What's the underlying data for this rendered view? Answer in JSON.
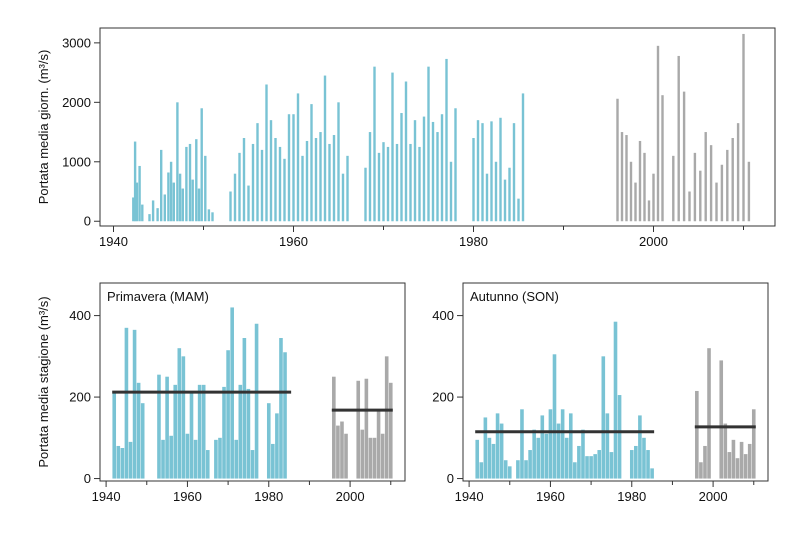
{
  "colors": {
    "early": "#79c3d4",
    "late": "#a9a9a9",
    "mean_line": "#333333"
  },
  "chart_data": [
    {
      "type": "bar",
      "ylabel": "Portata media giorn. (m³/s)",
      "xlim": [
        1938.5,
        2013.5
      ],
      "ylim": [
        -80,
        3250
      ],
      "xticks": [
        1940,
        1960,
        1980,
        2000
      ],
      "yticks": [
        0,
        1000,
        2000,
        3000
      ],
      "series": [
        {
          "color_key": "early",
          "x": [
            1942.2,
            1942.4,
            1942.6,
            1942.9,
            1943.2,
            1944,
            1944.4,
            1944.9,
            1945.3,
            1945.7,
            1946.1,
            1946.4,
            1946.7,
            1947.1,
            1947.4,
            1947.7,
            1948.1,
            1948.5,
            1948.8,
            1949.2,
            1949.5,
            1949.8,
            1950.2,
            1950.6,
            1951
          ],
          "values": [
            400,
            1340,
            650,
            930,
            280,
            120,
            350,
            220,
            1200,
            450,
            820,
            1000,
            650,
            2000,
            800,
            550,
            1250,
            1300,
            700,
            1380,
            550,
            1900,
            1100,
            200,
            150
          ]
        },
        {
          "color_key": "early",
          "x": [
            1953,
            1953.5,
            1954,
            1954.5,
            1955,
            1955.5,
            1956,
            1956.5,
            1957,
            1957.5,
            1958,
            1958.5,
            1959,
            1959.5,
            1960,
            1960.5,
            1961,
            1961.5,
            1962,
            1962.5,
            1963,
            1963.5,
            1964,
            1964.5,
            1965,
            1965.5,
            1966
          ],
          "values": [
            500,
            800,
            1150,
            1400,
            600,
            1300,
            1650,
            1200,
            2300,
            1700,
            1400,
            1250,
            1050,
            1800,
            1800,
            2150,
            1100,
            1350,
            1970,
            1400,
            1500,
            2450,
            1300,
            1450,
            2000,
            800,
            1100
          ]
        },
        {
          "color_key": "early",
          "x": [
            1968,
            1968.5,
            1969,
            1969.5,
            1970,
            1970.5,
            1971,
            1971.5,
            1972,
            1972.5,
            1973,
            1973.5,
            1974,
            1974.5,
            1975,
            1975.5,
            1976,
            1976.5,
            1977,
            1977.5,
            1978
          ],
          "values": [
            900,
            1500,
            2600,
            1150,
            1330,
            1250,
            2500,
            1300,
            1820,
            2350,
            1300,
            1700,
            1250,
            1760,
            2600,
            1670,
            1500,
            1800,
            2730,
            1000,
            1900
          ]
        },
        {
          "color_key": "early",
          "x": [
            1980,
            1980.5,
            1981,
            1981.5,
            1982,
            1982.5,
            1983,
            1983.5,
            1984,
            1984.5,
            1985,
            1985.5
          ],
          "values": [
            1400,
            1700,
            1650,
            800,
            1680,
            1000,
            1740,
            700,
            900,
            1650,
            380,
            2150
          ]
        },
        {
          "color_key": "late",
          "x": [
            1996,
            1996.5,
            1997,
            1997.5,
            1998,
            1998.5,
            1999,
            1999.5,
            2000,
            2000.5,
            2001
          ],
          "values": [
            2060,
            1500,
            1450,
            1000,
            650,
            1350,
            1150,
            350,
            800,
            2950,
            2120
          ]
        },
        {
          "color_key": "late",
          "x": [
            2002.2,
            2002.8,
            2003.4,
            2004,
            2004.6,
            2005.2,
            2005.8,
            2006.4,
            2007,
            2007.6,
            2008.2,
            2008.8,
            2009.4,
            2010,
            2010.6
          ],
          "values": [
            1100,
            2780,
            2180,
            500,
            1150,
            850,
            1500,
            1280,
            650,
            950,
            1200,
            1400,
            1650,
            3150,
            1000
          ]
        }
      ]
    },
    {
      "type": "bar",
      "title": "Primavera (MAM)",
      "ylabel": "Portata media stagione (m³/s)",
      "xlim": [
        1938.5,
        2013.5
      ],
      "ylim": [
        -6,
        480
      ],
      "xticks": [
        1940,
        1960,
        1980,
        2000
      ],
      "yticks": [
        0,
        200,
        400
      ],
      "series": [
        {
          "color_key": "early",
          "x": [
            1942,
            1943,
            1944,
            1945,
            1946,
            1947,
            1948,
            1949,
            1950,
            1951,
            1952,
            1953,
            1954,
            1955,
            1956,
            1957,
            1958,
            1959,
            1960,
            1961,
            1962,
            1963,
            1964,
            1965,
            1966,
            1967,
            1968,
            1969,
            1970,
            1971,
            1972,
            1973,
            1974,
            1975,
            1976,
            1977,
            1978,
            1979,
            1980,
            1981,
            1982,
            1983,
            1984,
            1985
          ],
          "values": [
            215,
            80,
            75,
            370,
            90,
            365,
            235,
            185,
            0,
            0,
            0,
            255,
            95,
            250,
            105,
            230,
            320,
            300,
            110,
            215,
            95,
            230,
            230,
            70,
            0,
            95,
            100,
            225,
            315,
            420,
            95,
            230,
            345,
            220,
            70,
            380,
            0,
            0,
            185,
            85,
            160,
            345,
            310,
            0
          ]
        },
        {
          "color_key": "late",
          "x": [
            1995,
            1996,
            1997,
            1998,
            1999,
            2000,
            2001,
            2002,
            2003,
            2004,
            2005,
            2006,
            2007,
            2008,
            2009,
            2010
          ],
          "values": [
            0,
            250,
            130,
            140,
            110,
            0,
            0,
            240,
            120,
            245,
            100,
            100,
            170,
            110,
            300,
            235
          ]
        }
      ],
      "means": [
        {
          "x0": 1941.5,
          "x1": 1985.5,
          "value": 212
        },
        {
          "x0": 1995.5,
          "x1": 2010.5,
          "value": 168
        }
      ]
    },
    {
      "type": "bar",
      "title": "Autunno (SON)",
      "xlim": [
        1938.5,
        2013.5
      ],
      "ylim": [
        -6,
        480
      ],
      "xticks": [
        1940,
        1960,
        1980,
        2000
      ],
      "yticks": [
        0,
        200,
        400
      ],
      "series": [
        {
          "color_key": "early",
          "x": [
            1942,
            1943,
            1944,
            1945,
            1946,
            1947,
            1948,
            1949,
            1950,
            1951,
            1952,
            1953,
            1954,
            1955,
            1956,
            1957,
            1958,
            1959,
            1960,
            1961,
            1962,
            1963,
            1964,
            1965,
            1966,
            1967,
            1968,
            1969,
            1970,
            1971,
            1972,
            1973,
            1974,
            1975,
            1976,
            1977,
            1978,
            1979,
            1980,
            1981,
            1982,
            1983,
            1984,
            1985
          ],
          "values": [
            95,
            40,
            150,
            100,
            85,
            160,
            135,
            45,
            30,
            0,
            45,
            170,
            45,
            70,
            120,
            100,
            155,
            110,
            170,
            305,
            135,
            170,
            100,
            160,
            40,
            80,
            120,
            55,
            55,
            60,
            70,
            300,
            160,
            65,
            385,
            205,
            0,
            0,
            70,
            80,
            155,
            100,
            70,
            25
          ]
        },
        {
          "color_key": "late",
          "x": [
            1995,
            1996,
            1997,
            1998,
            1999,
            2000,
            2001,
            2002,
            2003,
            2004,
            2005,
            2006,
            2007,
            2008,
            2009,
            2010
          ],
          "values": [
            0,
            215,
            40,
            80,
            320,
            0,
            0,
            290,
            135,
            65,
            95,
            50,
            90,
            60,
            85,
            170
          ]
        }
      ],
      "means": [
        {
          "x0": 1941.5,
          "x1": 1985.5,
          "value": 115
        },
        {
          "x0": 1995.5,
          "x1": 2010.5,
          "value": 127
        }
      ]
    }
  ]
}
